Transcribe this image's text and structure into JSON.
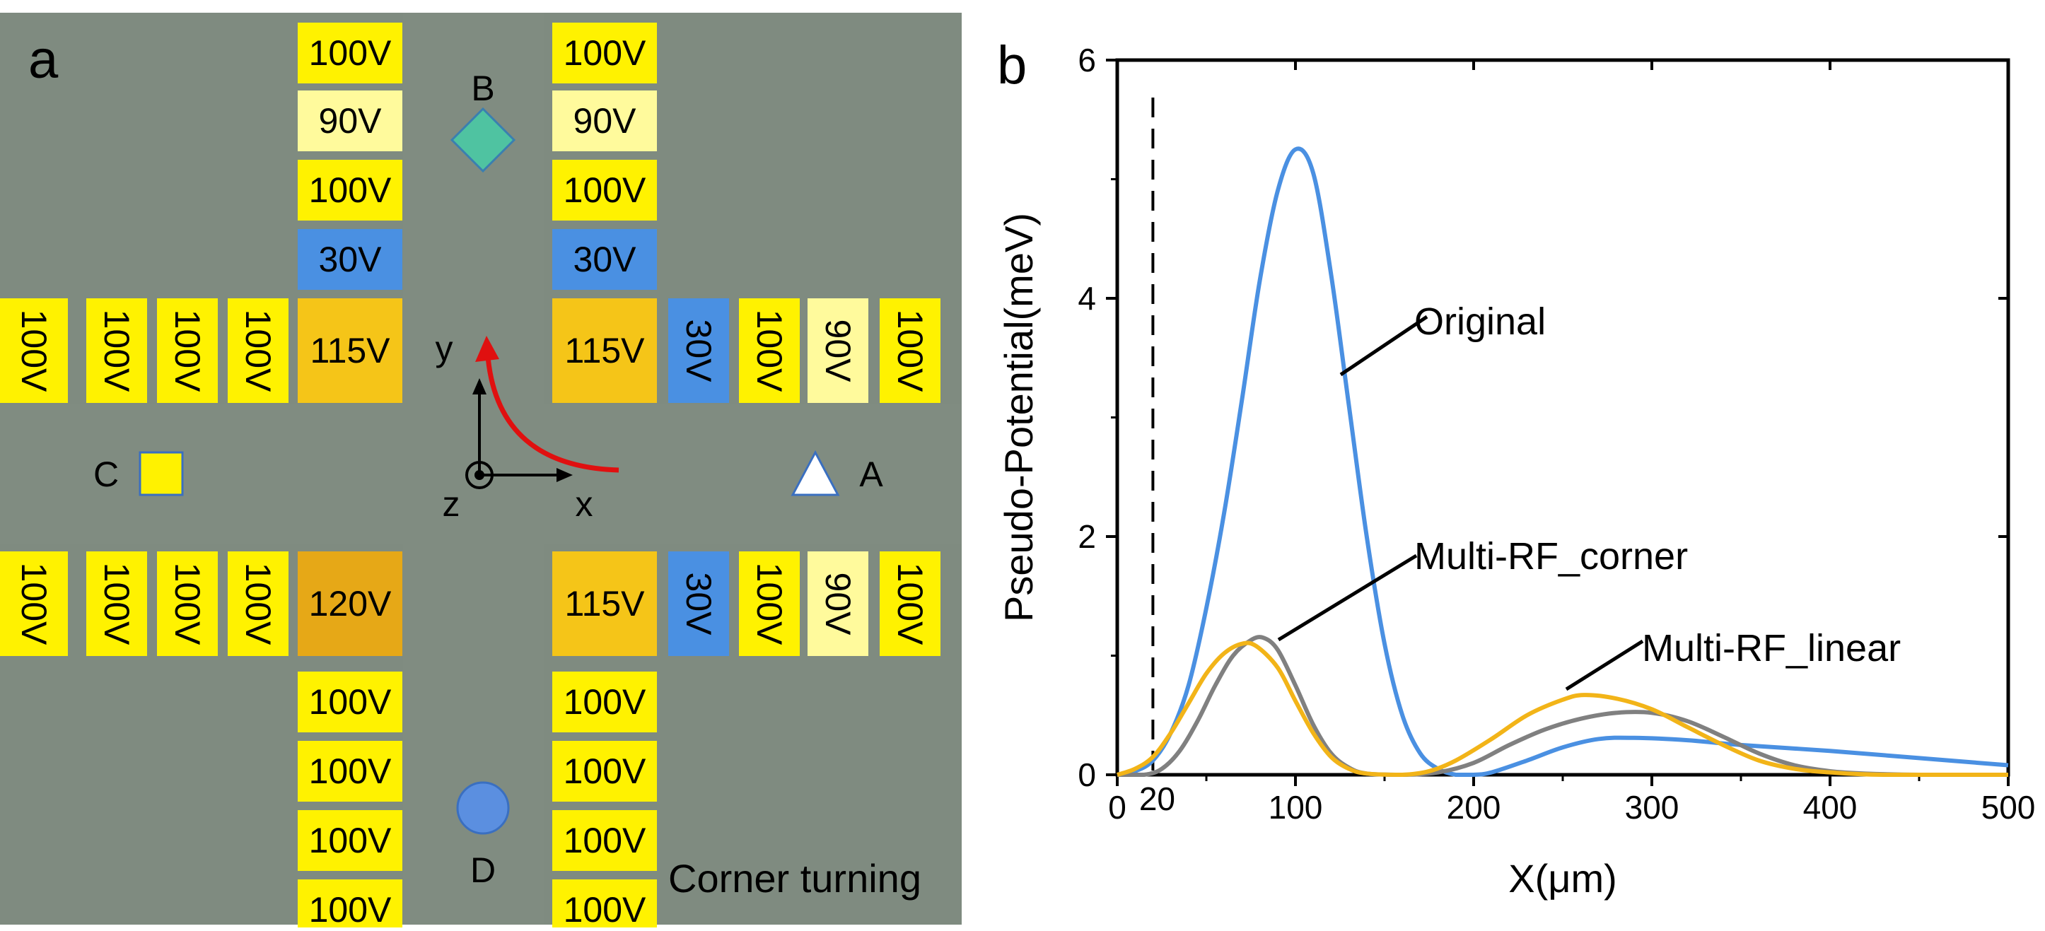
{
  "panel_a": {
    "label": "a",
    "corner_label": "Corner turning",
    "top_left_column": [
      "100V",
      "90V",
      "100V",
      "30V"
    ],
    "top_right_column": [
      "100V",
      "90V",
      "100V",
      "30V"
    ],
    "upper_left_row": [
      "100V",
      "100V",
      "100V",
      "100V"
    ],
    "upper_left_corner": "115V",
    "upper_right_corner": "115V",
    "upper_right_row": [
      "30V",
      "100V",
      "90V",
      "100V"
    ],
    "lower_left_row": [
      "100V",
      "100V",
      "100V",
      "100V"
    ],
    "lower_left_corner": "120V",
    "lower_right_corner": "115V",
    "lower_right_row": [
      "30V",
      "100V",
      "90V",
      "100V"
    ],
    "bottom_left_column": [
      "100V",
      "100V",
      "100V",
      "100V"
    ],
    "bottom_right_column": [
      "100V",
      "100V",
      "100V",
      "100V"
    ],
    "markers": {
      "A": "A",
      "B": "B",
      "C": "C",
      "D": "D"
    },
    "axes": {
      "x": "x",
      "y": "y",
      "z": "z"
    },
    "colors": {
      "background": "#7f8b80",
      "electrode_100": "#fff200",
      "electrode_90": "#fffa9c",
      "electrode_30": "#4a90e2",
      "electrode_115": "#f5c518",
      "electrode_120": "#e6a817",
      "marker_B": "#4fc3a1",
      "marker_C": "#fff200",
      "marker_D": "#5b8fe0",
      "arrow": "#e01010"
    }
  },
  "panel_b": {
    "label": "b",
    "chart_data": {
      "type": "line",
      "xlabel": "X(μm)",
      "ylabel": "Pseudo-Potential(meV)",
      "xlim": [
        0,
        500
      ],
      "ylim": [
        0,
        6
      ],
      "x_ticks": [
        "0",
        "100",
        "200",
        "300",
        "400",
        "500"
      ],
      "y_ticks": [
        "0",
        "2",
        "4",
        "6"
      ],
      "extra_x_tick": "20",
      "dashed_line_x": 20,
      "series": [
        {
          "name": "Original",
          "color": "#4a90e2",
          "points": [
            [
              0,
              0
            ],
            [
              10,
              0.03
            ],
            [
              20,
              0.12
            ],
            [
              30,
              0.35
            ],
            [
              40,
              0.75
            ],
            [
              50,
              1.4
            ],
            [
              60,
              2.2
            ],
            [
              70,
              3.15
            ],
            [
              80,
              4.15
            ],
            [
              90,
              4.9
            ],
            [
              100,
              5.25
            ],
            [
              110,
              5.05
            ],
            [
              120,
              4.2
            ],
            [
              130,
              3.1
            ],
            [
              140,
              2.0
            ],
            [
              150,
              1.1
            ],
            [
              160,
              0.5
            ],
            [
              170,
              0.18
            ],
            [
              180,
              0.05
            ],
            [
              190,
              0.0
            ],
            [
              200,
              0.0
            ],
            [
              210,
              0.02
            ],
            [
              230,
              0.12
            ],
            [
              250,
              0.23
            ],
            [
              270,
              0.3
            ],
            [
              290,
              0.31
            ],
            [
              320,
              0.29
            ],
            [
              350,
              0.25
            ],
            [
              400,
              0.2
            ],
            [
              450,
              0.14
            ],
            [
              500,
              0.08
            ]
          ]
        },
        {
          "name": "Multi-RF_corner",
          "color": "#808080",
          "points": [
            [
              0,
              0
            ],
            [
              15,
              0
            ],
            [
              25,
              0.05
            ],
            [
              35,
              0.2
            ],
            [
              45,
              0.45
            ],
            [
              55,
              0.75
            ],
            [
              65,
              1.0
            ],
            [
              75,
              1.13
            ],
            [
              82,
              1.15
            ],
            [
              90,
              1.05
            ],
            [
              100,
              0.75
            ],
            [
              110,
              0.42
            ],
            [
              120,
              0.18
            ],
            [
              130,
              0.06
            ],
            [
              140,
              0.01
            ],
            [
              160,
              0
            ],
            [
              180,
              0.02
            ],
            [
              200,
              0.1
            ],
            [
              220,
              0.25
            ],
            [
              240,
              0.38
            ],
            [
              260,
              0.47
            ],
            [
              280,
              0.52
            ],
            [
              300,
              0.52
            ],
            [
              320,
              0.45
            ],
            [
              340,
              0.32
            ],
            [
              360,
              0.18
            ],
            [
              380,
              0.08
            ],
            [
              400,
              0.03
            ],
            [
              420,
              0.01
            ],
            [
              450,
              0
            ],
            [
              500,
              0
            ]
          ]
        },
        {
          "name": "Multi-RF_linear",
          "color": "#f2b418",
          "points": [
            [
              0,
              0
            ],
            [
              10,
              0.05
            ],
            [
              20,
              0.15
            ],
            [
              30,
              0.35
            ],
            [
              40,
              0.6
            ],
            [
              50,
              0.85
            ],
            [
              60,
              1.02
            ],
            [
              70,
              1.1
            ],
            [
              78,
              1.08
            ],
            [
              90,
              0.9
            ],
            [
              100,
              0.62
            ],
            [
              110,
              0.35
            ],
            [
              120,
              0.15
            ],
            [
              130,
              0.05
            ],
            [
              140,
              0.01
            ],
            [
              160,
              0
            ],
            [
              175,
              0.03
            ],
            [
              190,
              0.12
            ],
            [
              210,
              0.3
            ],
            [
              230,
              0.5
            ],
            [
              250,
              0.63
            ],
            [
              262,
              0.67
            ],
            [
              280,
              0.64
            ],
            [
              300,
              0.55
            ],
            [
              320,
              0.4
            ],
            [
              340,
              0.25
            ],
            [
              360,
              0.12
            ],
            [
              380,
              0.05
            ],
            [
              400,
              0.02
            ],
            [
              430,
              0
            ],
            [
              500,
              0
            ]
          ]
        }
      ],
      "annotations": [
        "Original",
        "Multi-RF_corner",
        "Multi-RF_linear"
      ]
    }
  }
}
